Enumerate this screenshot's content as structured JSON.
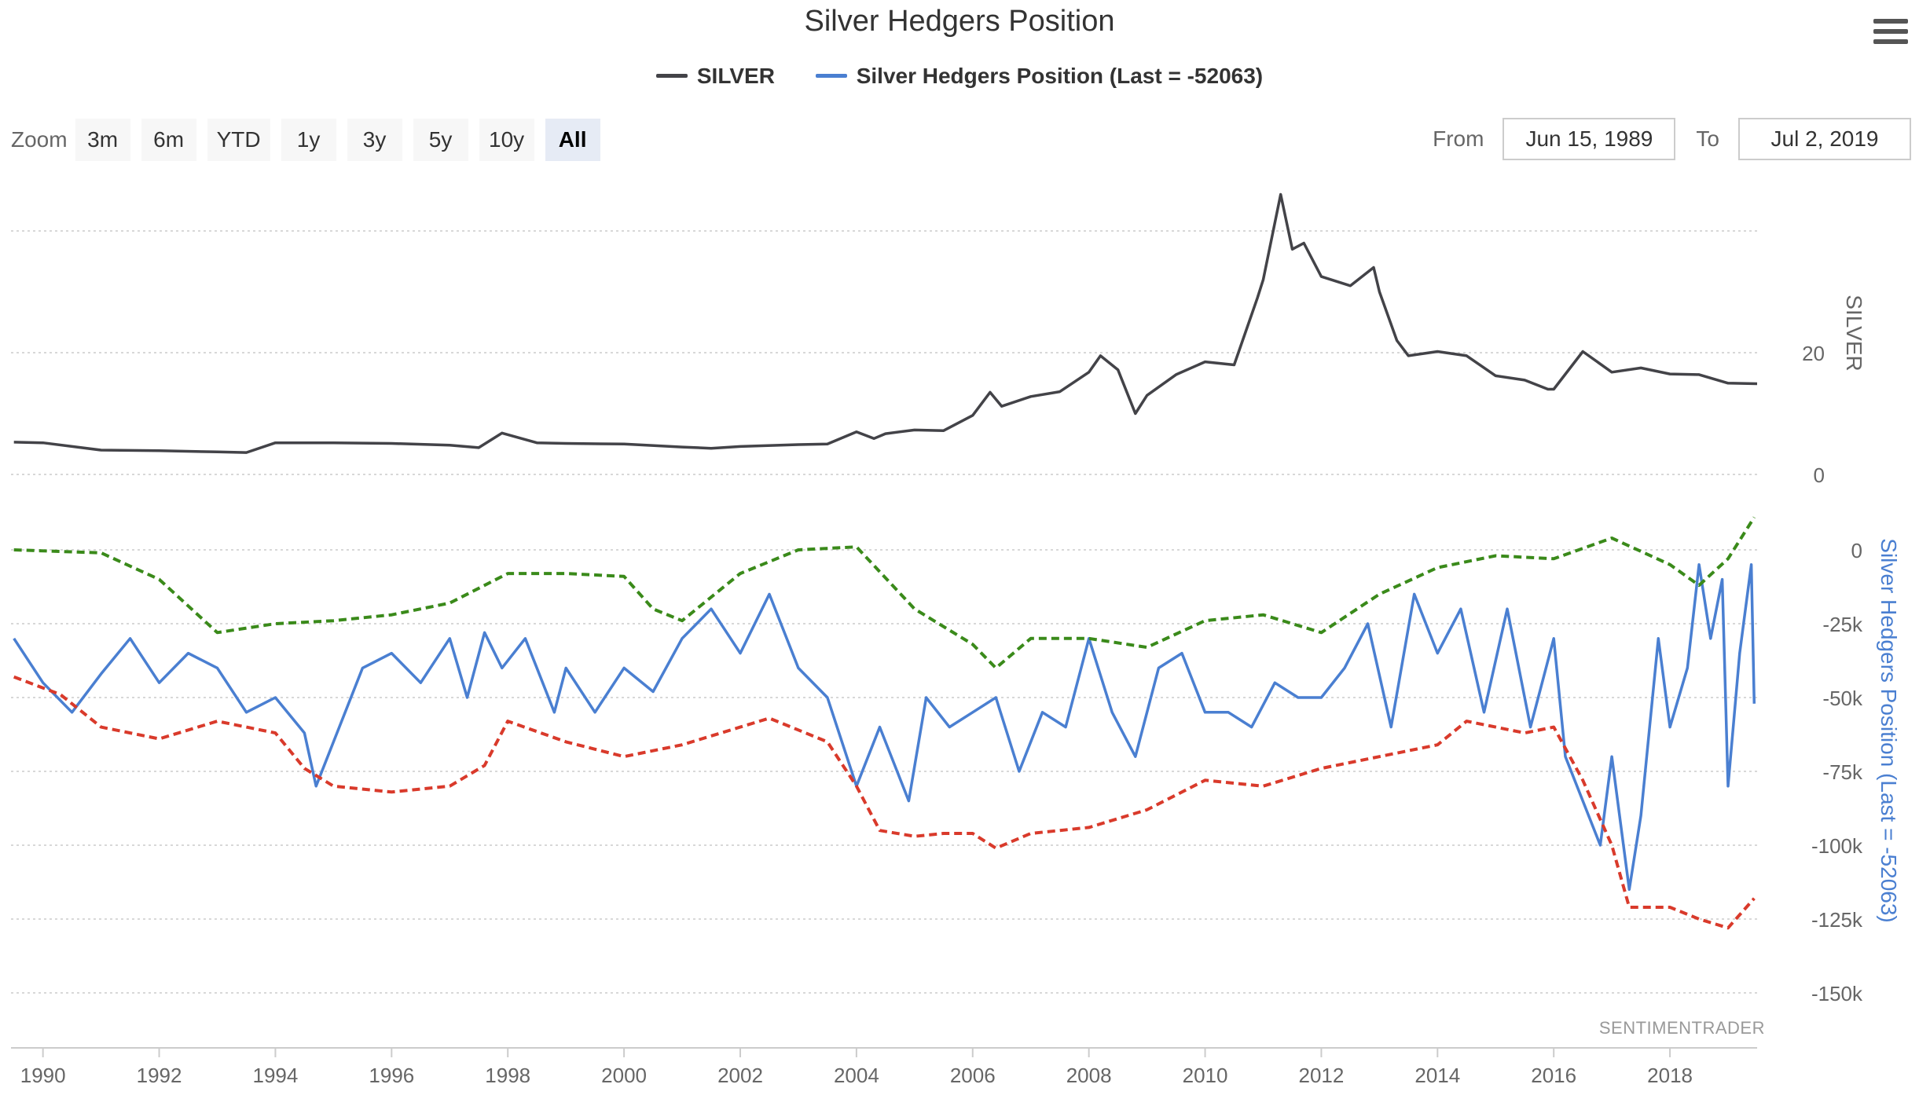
{
  "title": "Silver Hedgers Position",
  "legend": [
    {
      "label": "SILVER",
      "color": "#434348"
    },
    {
      "label": "Silver Hedgers Position (Last = -52063)",
      "color": "#4a7fd1"
    }
  ],
  "zoom": {
    "label": "Zoom",
    "buttons": [
      "3m",
      "6m",
      "YTD",
      "1y",
      "3y",
      "5y",
      "10y",
      "All"
    ],
    "active": "All"
  },
  "range": {
    "from_label": "From",
    "from_value": "Jun 15, 1989",
    "to_label": "To",
    "to_value": "Jul 2, 2019"
  },
  "credit": "SENTIMENTRADER",
  "icons": {
    "menu": "hamburger-menu-icon"
  },
  "chart_data": {
    "type": "line",
    "title": "Silver Hedgers Position",
    "x_range": [
      "1989-06-15",
      "2019-07-02"
    ],
    "x_ticks": [
      "1990",
      "1992",
      "1994",
      "1996",
      "1998",
      "2000",
      "2002",
      "2004",
      "2006",
      "2008",
      "2010",
      "2012",
      "2014",
      "2016",
      "2018"
    ],
    "panels": [
      {
        "ylabel": "SILVER",
        "ylim": [
          0,
          40
        ],
        "yticks": [
          "0",
          "20"
        ],
        "series": [
          {
            "name": "SILVER",
            "color": "#434348",
            "style": "solid",
            "x": [
              1989.5,
              1990,
              1991,
              1992,
              1993,
              1993.5,
              1994,
              1995,
              1996,
              1997,
              1997.5,
              1997.9,
              1998.5,
              1999,
              2000,
              2001,
              2001.5,
              2002,
              2003,
              2003.5,
              2004,
              2004.3,
              2004.5,
              2005,
              2005.5,
              2006,
              2006.3,
              2006.5,
              2007,
              2007.5,
              2008,
              2008.2,
              2008.5,
              2008.8,
              2009,
              2009.5,
              2010,
              2010.5,
              2010.9,
              2011,
              2011.3,
              2011.5,
              2011.7,
              2012,
              2012.5,
              2012.9,
              2013,
              2013.3,
              2013.5,
              2014,
              2014.5,
              2015,
              2015.5,
              2015.9,
              2016,
              2016.5,
              2017,
              2017.5,
              2018,
              2018.5,
              2019,
              2019.5
            ],
            "y": [
              5.3,
              5.2,
              4.0,
              3.9,
              3.7,
              3.6,
              5.2,
              5.2,
              5.1,
              4.8,
              4.4,
              6.8,
              5.2,
              5.1,
              5.0,
              4.5,
              4.3,
              4.6,
              4.9,
              5.0,
              7.0,
              5.9,
              6.7,
              7.3,
              7.2,
              9.7,
              13.5,
              11.2,
              12.8,
              13.6,
              16.8,
              19.5,
              17.2,
              10.0,
              13.0,
              16.4,
              18.5,
              18.0,
              29.0,
              32.0,
              46.0,
              37.0,
              38.0,
              32.5,
              31.0,
              34.0,
              30.0,
              22.0,
              19.5,
              20.2,
              19.5,
              16.2,
              15.5,
              14.0,
              14.0,
              20.2,
              16.8,
              17.5,
              16.5,
              16.4,
              15.0,
              14.9
            ]
          }
        ]
      },
      {
        "ylabel": "Silver Hedgers Position (Last = -52063)",
        "ylim": [
          -150000,
          0
        ],
        "yticks": [
          "0",
          "-25k",
          "-50k",
          "-75k",
          "-100k",
          "-125k",
          "-150k"
        ],
        "series": [
          {
            "name": "Silver Hedgers Position (Last = -52063)",
            "color": "#4a7fd1",
            "style": "solid",
            "x": [
              1989.5,
              1990,
              1990.5,
              1991,
              1991.5,
              1992,
              1992.5,
              1993,
              1993.5,
              1994,
              1994.5,
              1994.7,
              1995,
              1995.5,
              1996,
              1996.5,
              1997,
              1997.3,
              1997.6,
              1997.9,
              1998.3,
              1998.8,
              1999,
              1999.5,
              2000,
              2000.5,
              2001,
              2001.5,
              2002,
              2002.5,
              2003,
              2003.5,
              2004,
              2004.4,
              2004.9,
              2005.2,
              2005.6,
              2006,
              2006.4,
              2006.8,
              2007.2,
              2007.6,
              2008,
              2008.4,
              2008.8,
              2009.2,
              2009.6,
              2010,
              2010.4,
              2010.8,
              2011.2,
              2011.6,
              2012,
              2012.4,
              2012.8,
              2013.2,
              2013.6,
              2014,
              2014.4,
              2014.8,
              2015.2,
              2015.6,
              2016,
              2016.2,
              2016.5,
              2016.8,
              2017,
              2017.3,
              2017.5,
              2017.8,
              2018,
              2018.3,
              2018.5,
              2018.7,
              2018.9,
              2019,
              2019.2,
              2019.4,
              2019.45
            ],
            "y": [
              -30000,
              -45000,
              -55000,
              -42000,
              -30000,
              -45000,
              -35000,
              -40000,
              -55000,
              -50000,
              -62000,
              -80000,
              -65000,
              -40000,
              -35000,
              -45000,
              -30000,
              -50000,
              -28000,
              -40000,
              -30000,
              -55000,
              -40000,
              -55000,
              -40000,
              -48000,
              -30000,
              -20000,
              -35000,
              -15000,
              -40000,
              -50000,
              -80000,
              -60000,
              -85000,
              -50000,
              -60000,
              -55000,
              -50000,
              -75000,
              -55000,
              -60000,
              -30000,
              -55000,
              -70000,
              -40000,
              -35000,
              -55000,
              -55000,
              -60000,
              -45000,
              -50000,
              -50000,
              -40000,
              -25000,
              -60000,
              -15000,
              -35000,
              -20000,
              -55000,
              -20000,
              -60000,
              -30000,
              -70000,
              -85000,
              -100000,
              -70000,
              -115000,
              -90000,
              -30000,
              -60000,
              -40000,
              -5000,
              -30000,
              -10000,
              -80000,
              -35000,
              -5000,
              -52063
            ]
          },
          {
            "name": "",
            "color": "#3a8a1a",
            "style": "dashed",
            "x": [
              1989.5,
              1991,
              1992,
              1993,
              1994,
              1995,
              1996,
              1997,
              1998,
              1999,
              2000,
              2000.5,
              2001,
              2002,
              2003,
              2004,
              2005,
              2006,
              2006.4,
              2007,
              2008,
              2009,
              2010,
              2011,
              2012,
              2013,
              2014,
              2015,
              2016,
              2017,
              2018,
              2018.5,
              2019,
              2019.45
            ],
            "y": [
              0,
              -1000,
              -10000,
              -28000,
              -25000,
              -24000,
              -22000,
              -18000,
              -8000,
              -8000,
              -9000,
              -20000,
              -24000,
              -8000,
              0,
              1000,
              -20000,
              -32000,
              -40000,
              -30000,
              -30000,
              -33000,
              -24000,
              -22000,
              -28000,
              -15000,
              -6000,
              -2000,
              -3000,
              4000,
              -5000,
              -12000,
              -3000,
              11000
            ]
          },
          {
            "name": "",
            "color": "#d93a2b",
            "style": "dashed",
            "x": [
              1989.5,
              1990.3,
              1991,
              1992,
              1993,
              1994,
              1994.5,
              1995,
              1996,
              1997,
              1997.6,
              1998,
              1999,
              2000,
              2001,
              2002,
              2002.5,
              2003.5,
              2004,
              2004.4,
              2005,
              2005.5,
              2006,
              2006.4,
              2007,
              2008,
              2009,
              2010,
              2011,
              2012,
              2013,
              2014,
              2014.5,
              2015,
              2015.5,
              2016,
              2016.5,
              2017,
              2017.3,
              2018,
              2018.5,
              2019,
              2019.45
            ],
            "y": [
              -43000,
              -49000,
              -60000,
              -64000,
              -58000,
              -62000,
              -74000,
              -80000,
              -82000,
              -80000,
              -73000,
              -58000,
              -65000,
              -70000,
              -66000,
              -60000,
              -57000,
              -65000,
              -80000,
              -95000,
              -97000,
              -96000,
              -96000,
              -101000,
              -96000,
              -94000,
              -88000,
              -78000,
              -80000,
              -74000,
              -70000,
              -66000,
              -58000,
              -60000,
              -62000,
              -60000,
              -78000,
              -100000,
              -121000,
              -121000,
              -125000,
              -128000,
              -118000
            ]
          }
        ]
      }
    ],
    "grid": true,
    "legend_position": "top-center"
  }
}
